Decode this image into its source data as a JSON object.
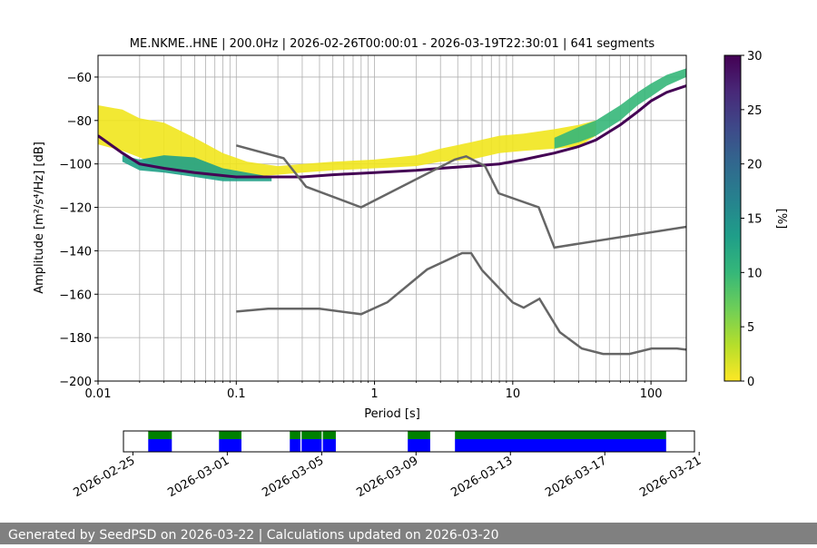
{
  "chart_data": [
    {
      "type": "heatmap",
      "title": "ME.NKME..HNE | 200.0Hz | 2026-02-26T00:00:01 - 2026-03-19T22:30:01 | 641 segments",
      "xlabel": "Period [s]",
      "ylabel": "Amplitude [m²/s⁴/Hz] [dB]",
      "x_scale": "log",
      "xlim": [
        0.01,
        180
      ],
      "ylim": [
        -200,
        -50
      ],
      "xticks": [
        0.01,
        0.1,
        1,
        10,
        100
      ],
      "xtick_labels": [
        "0.01",
        "0.1",
        "1",
        "10",
        "100"
      ],
      "yticks": [
        -200,
        -180,
        -160,
        -140,
        -120,
        -100,
        -80,
        -60
      ],
      "ytick_labels": [
        "−200",
        "−180",
        "−160",
        "−140",
        "−120",
        "−100",
        "−80",
        "−60"
      ],
      "grid": true,
      "density_bands": [
        {
          "name": "upper-spread",
          "level": "low",
          "color": "#f1e51d",
          "period": [
            0.01,
            0.015,
            0.02,
            0.03,
            0.05,
            0.08,
            0.12,
            0.2,
            0.3,
            0.5,
            1,
            2,
            3,
            5,
            8,
            12,
            20,
            30,
            40
          ],
          "upper": [
            -73,
            -75,
            -79,
            -81,
            -88,
            -95,
            -99,
            -101,
            -100,
            -99,
            -98,
            -96,
            -93,
            -90,
            -87,
            -86,
            -84,
            -82,
            -80
          ],
          "lower": [
            -91,
            -94,
            -97,
            -102,
            -105,
            -107,
            -106,
            -105,
            -104,
            -103,
            -102,
            -101,
            -99,
            -98,
            -95,
            -94,
            -93,
            -92,
            -87
          ]
        },
        {
          "name": "main-density",
          "level": "high",
          "color": "#1fa187",
          "period": [
            0.015,
            0.02,
            0.03,
            0.05,
            0.08,
            0.12,
            0.18
          ],
          "upper": [
            -96,
            -98,
            -96,
            -97,
            -102,
            -104,
            -106
          ],
          "lower": [
            -99,
            -103,
            -104,
            -106,
            -108,
            -108,
            -108
          ]
        },
        {
          "name": "long-period-rise",
          "level": "mid",
          "color": "#35b779",
          "period": [
            20,
            30,
            40,
            60,
            80,
            100,
            130,
            180
          ],
          "upper": [
            -88,
            -83,
            -80,
            -73,
            -67,
            -63,
            -59,
            -56
          ],
          "lower": [
            -93,
            -90,
            -87,
            -80,
            -73,
            -69,
            -64,
            -60
          ]
        }
      ],
      "mode_line": {
        "color": "#440154",
        "period": [
          0.01,
          0.015,
          0.02,
          0.03,
          0.05,
          0.1,
          0.2,
          0.3,
          0.5,
          1,
          2,
          3,
          5,
          8,
          12,
          20,
          30,
          40,
          60,
          80,
          100,
          130,
          180
        ],
        "db": [
          -87,
          -95,
          -100,
          -102,
          -104,
          -106,
          -106,
          -106,
          -105,
          -104,
          -103,
          -102,
          -101,
          -100,
          -98,
          -95,
          -92,
          -89,
          -82,
          -76,
          -71,
          -67,
          -64
        ]
      },
      "noise_models": [
        {
          "name": "NHNM",
          "period": [
            0.1,
            0.22,
            0.32,
            0.8,
            3.8,
            4.6,
            6.3,
            7.9,
            15.4,
            20,
            354.8
          ],
          "db": [
            -91.5,
            -97.4,
            -110.5,
            -120,
            -98,
            -96.5,
            -101,
            -113.5,
            -120,
            -138.5,
            -126
          ]
        },
        {
          "name": "NLNM",
          "period": [
            0.1,
            0.17,
            0.4,
            0.8,
            1.24,
            2.4,
            4.3,
            5,
            6,
            10,
            12,
            15.6,
            21.9,
            31.6,
            45,
            70,
            101,
            154,
            328
          ],
          "db": [
            -168,
            -166.7,
            -166.7,
            -169.2,
            -163.7,
            -148.6,
            -141.1,
            -141.1,
            -149,
            -163.8,
            -166.2,
            -162.1,
            -177.5,
            -185,
            -187.5,
            -187.5,
            -185,
            -185,
            -187.5
          ]
        }
      ],
      "colorbar": {
        "label": "[%]",
        "range": [
          0,
          30
        ],
        "ticks": [
          0,
          5,
          10,
          15,
          20,
          25,
          30
        ],
        "tick_labels": [
          "0",
          "5",
          "10",
          "15",
          "20",
          "25",
          "30"
        ],
        "colors": [
          "#fde725",
          "#b5de2b",
          "#6ece58",
          "#35b779",
          "#1f9e89",
          "#26828e",
          "#31688e",
          "#3e4989",
          "#482878",
          "#440154"
        ]
      }
    },
    {
      "type": "timeline",
      "xtick_labels": [
        "2026-02-25",
        "2026-03-01",
        "2026-03-05",
        "2026-03-09",
        "2026-03-13",
        "2026-03-17",
        "2026-03-21"
      ],
      "xlim_days": [
        -1.4,
        22.8
      ],
      "xtick_days": [
        -1,
        3,
        7,
        11,
        15,
        19,
        23
      ],
      "top_color": "#008000",
      "bottom_color": "#0000ff",
      "segments_days": [
        [
          -0.35,
          0.65
        ],
        [
          2.65,
          3.6
        ],
        [
          5.65,
          6.1
        ],
        [
          6.15,
          7.0
        ],
        [
          7.05,
          7.6
        ],
        [
          10.65,
          11.6
        ],
        [
          12.65,
          21.6
        ]
      ]
    }
  ],
  "footer": {
    "text": "Generated by SeedPSD on 2026-03-22 | Calculations updated on 2026-03-20"
  }
}
